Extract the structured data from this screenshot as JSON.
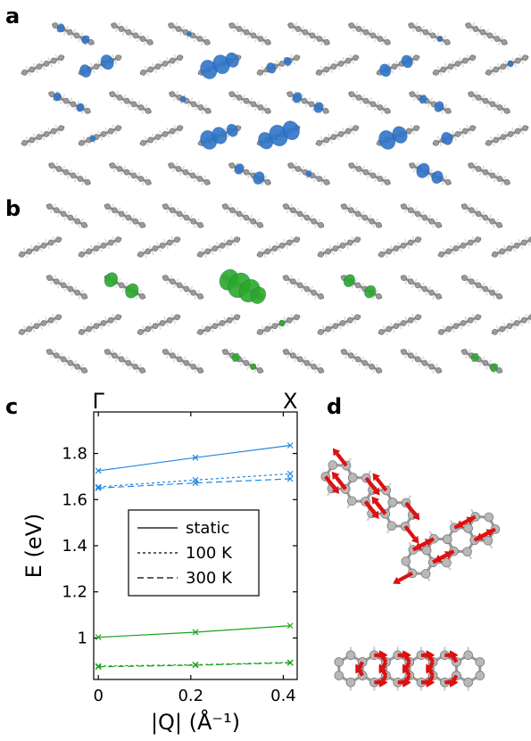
{
  "panels": {
    "a": "a",
    "b": "b",
    "c": "c",
    "d": "d"
  },
  "colors": {
    "carbon": "#9a9a9a",
    "hydrogen": "#d9d9d9",
    "density_a": "#2f74c9",
    "density_b": "#2aa82a",
    "displacement": "#dd1111",
    "blue_series": "#1f87e6",
    "green_series": "#1aa31a"
  },
  "chart_data": {
    "type": "line",
    "top_labels": [
      "Γ",
      "X"
    ],
    "xlabel": "|Q| (Å⁻¹)",
    "ylabel": "E (eV)",
    "xlim": [
      -0.01,
      0.43
    ],
    "ylim": [
      0.82,
      1.98
    ],
    "xticks": [
      "0",
      "0.2",
      "0.4"
    ],
    "yticks": [
      "1",
      "1.2",
      "1.4",
      "1.6",
      "1.8"
    ],
    "legend": {
      "position": "center",
      "entries": [
        "static",
        "100 K",
        "300 K"
      ]
    },
    "x": [
      0,
      0.21,
      0.415
    ],
    "series": [
      {
        "group": "blue",
        "style": "solid",
        "values": [
          1.725,
          1.782,
          1.835
        ]
      },
      {
        "group": "blue",
        "style": "dotted",
        "values": [
          1.655,
          1.685,
          1.712
        ]
      },
      {
        "group": "blue",
        "style": "dashed",
        "values": [
          1.65,
          1.672,
          1.69
        ]
      },
      {
        "group": "green",
        "style": "solid",
        "values": [
          1.003,
          1.025,
          1.053
        ]
      },
      {
        "group": "green",
        "style": "dotted",
        "values": [
          0.878,
          0.884,
          0.894
        ]
      },
      {
        "group": "green",
        "style": "dashed",
        "values": [
          0.875,
          0.882,
          0.892
        ]
      }
    ]
  }
}
